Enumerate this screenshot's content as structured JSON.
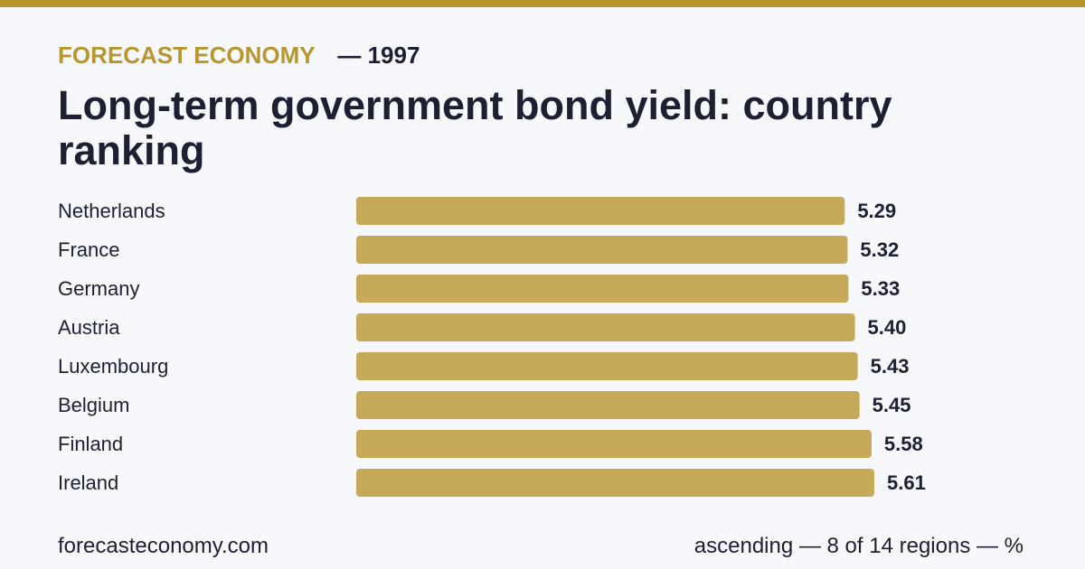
{
  "header": {
    "brand": "FORECAST ECONOMY",
    "year_separator": "— 1997",
    "title": "Long-term government bond yield: country ranking"
  },
  "colors": {
    "accent": "#b8962f",
    "bar": "#c7a95a",
    "text": "#1d1f33",
    "background": "#f7f8fb"
  },
  "chart_data": {
    "type": "bar",
    "orientation": "horizontal",
    "categories": [
      "Netherlands",
      "France",
      "Germany",
      "Austria",
      "Luxembourg",
      "Belgium",
      "Finland",
      "Ireland"
    ],
    "values": [
      5.29,
      5.32,
      5.33,
      5.4,
      5.43,
      5.45,
      5.58,
      5.61
    ],
    "value_labels": [
      "5.29",
      "5.32",
      "5.33",
      "5.40",
      "5.43",
      "5.45",
      "5.58",
      "5.61"
    ],
    "xlim": [
      0,
      5.61
    ],
    "grid": false
  },
  "footer": {
    "site": "forecasteconomy.com",
    "note": "ascending — 8 of 14 regions — %"
  }
}
